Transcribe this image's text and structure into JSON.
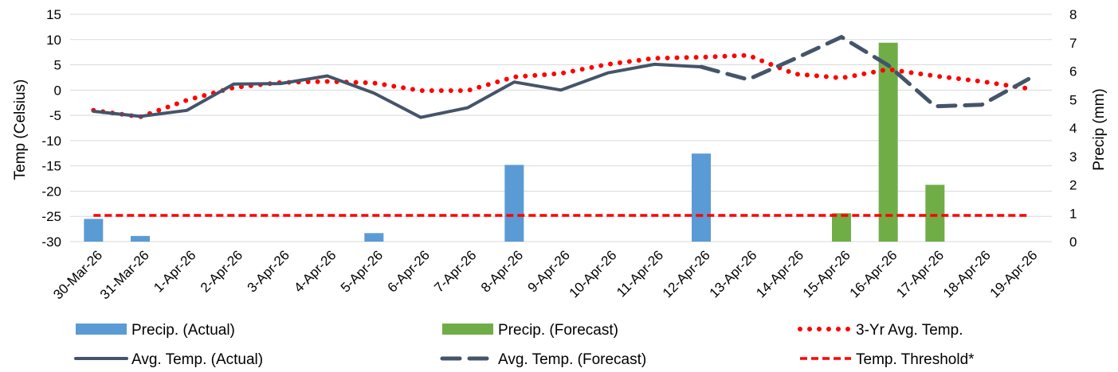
{
  "chart_data": {
    "type": "bar",
    "categories": [
      "30-Mar-26",
      "31-Mar-26",
      "1-Apr-26",
      "2-Apr-26",
      "3-Apr-26",
      "4-Apr-26",
      "5-Apr-26",
      "6-Apr-26",
      "7-Apr-26",
      "8-Apr-26",
      "9-Apr-26",
      "10-Apr-26",
      "11-Apr-26",
      "12-Apr-26",
      "13-Apr-26",
      "14-Apr-26",
      "15-Apr-26",
      "16-Apr-26",
      "17-Apr-26",
      "18-Apr-26",
      "19-Apr-26"
    ],
    "title": "",
    "y_left": {
      "label": "Temp (Celsius)",
      "min": -30,
      "max": 15,
      "step": 5,
      "ticks": [
        "15",
        "10",
        "5",
        "0",
        "-5",
        "-10",
        "-15",
        "-20",
        "-25",
        "-30"
      ]
    },
    "y_right": {
      "label": "Precip (mm)",
      "min": 0,
      "max": 8,
      "step": 1,
      "ticks": [
        "8",
        "7",
        "6",
        "5",
        "4",
        "3",
        "2",
        "1",
        "0"
      ]
    },
    "grid": true,
    "legend_position": "bottom",
    "series": [
      {
        "name": "Precip. (Actual)",
        "kind": "bar",
        "axis": "right",
        "color": "#5B9BD5",
        "values": [
          0.8,
          0.2,
          0,
          0,
          0,
          0,
          0.3,
          0,
          0,
          2.7,
          0,
          0,
          0,
          3.1,
          null,
          null,
          null,
          null,
          null,
          null,
          null
        ]
      },
      {
        "name": "Precip. (Forecast)",
        "kind": "bar",
        "axis": "right",
        "color": "#70AD47",
        "values": [
          null,
          null,
          null,
          null,
          null,
          null,
          null,
          null,
          null,
          null,
          null,
          null,
          null,
          null,
          0,
          0,
          1.0,
          7.0,
          2.0,
          0,
          0
        ]
      },
      {
        "name": "3-Yr Avg. Temp.",
        "kind": "line",
        "style": "dotted",
        "axis": "left",
        "color": "#FF0000",
        "values": [
          -4,
          -5.3,
          -2,
          0.5,
          1.5,
          1.7,
          1.4,
          -0.1,
          -0.1,
          2.6,
          3.3,
          5.1,
          6.3,
          6.5,
          6.9,
          3.2,
          2.4,
          4.1,
          2.8,
          1.7,
          0.3
        ]
      },
      {
        "name": "Avg. Temp. (Actual)",
        "kind": "line",
        "style": "solid",
        "axis": "left",
        "color": "#44546A",
        "values": [
          -4.2,
          -5.2,
          -4,
          1.2,
          1.3,
          2.8,
          -0.6,
          -5.4,
          -3.5,
          1.6,
          0,
          3.4,
          5.1,
          4.6,
          null,
          null,
          null,
          null,
          null,
          null,
          null
        ]
      },
      {
        "name": "Avg. Temp. (Forecast)",
        "kind": "line",
        "style": "dashed",
        "axis": "left",
        "color": "#44546A",
        "values": [
          null,
          null,
          null,
          null,
          null,
          null,
          null,
          null,
          null,
          null,
          null,
          null,
          null,
          4.6,
          2.1,
          6.2,
          10.5,
          4.9,
          -3.2,
          -2.9,
          2.2
        ]
      },
      {
        "name": "Temp. Threshold*",
        "kind": "line",
        "style": "short-dash",
        "axis": "left",
        "color": "#FF0000",
        "values": [
          -24.8,
          -24.8,
          -24.8,
          -24.8,
          -24.8,
          -24.8,
          -24.8,
          -24.8,
          -24.8,
          -24.8,
          -24.8,
          -24.8,
          -24.8,
          -24.8,
          -24.8,
          -24.8,
          -24.8,
          -24.8,
          -24.8,
          -24.8,
          -24.8
        ]
      }
    ],
    "legend_order": [
      0,
      1,
      2,
      3,
      4,
      5
    ]
  }
}
